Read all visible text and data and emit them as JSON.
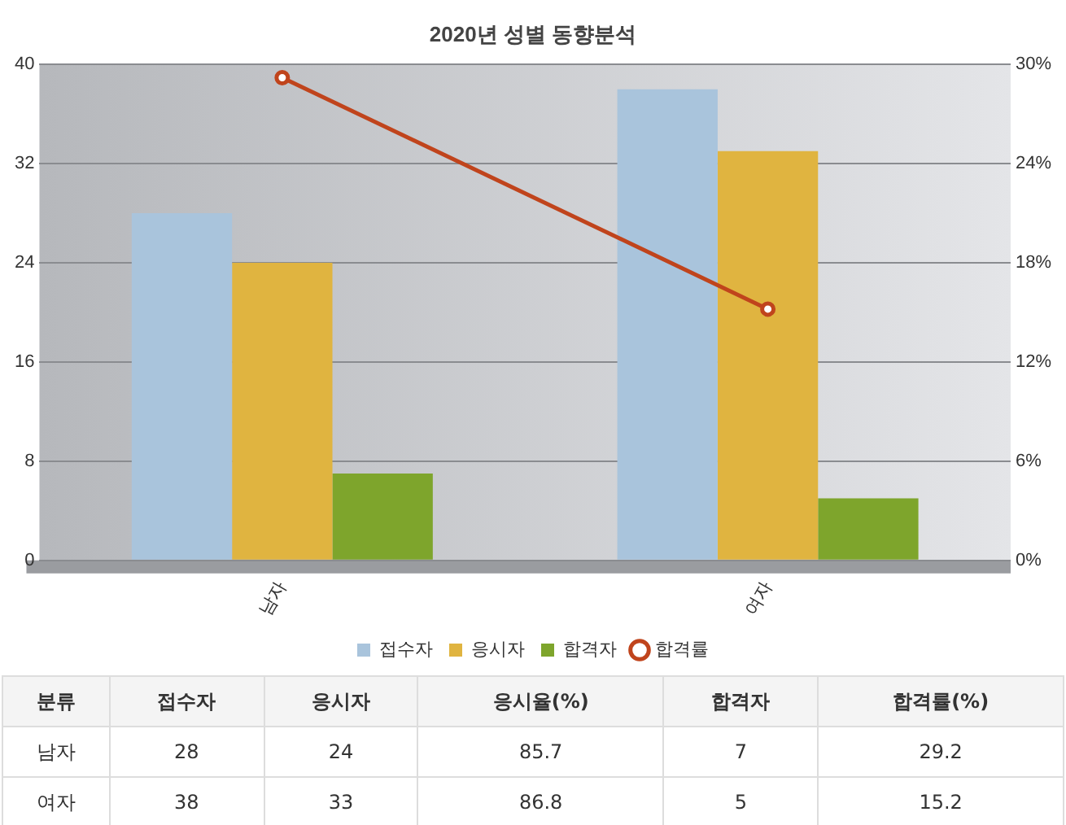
{
  "chart_data": [
    {
      "type": "bar",
      "title": "2020년 성별 동향분석",
      "categories": [
        "남자",
        "여자"
      ],
      "series": [
        {
          "name": "접수자",
          "color": "#a9c4dc",
          "values": [
            28,
            38
          ]
        },
        {
          "name": "응시자",
          "color": "#e0b440",
          "values": [
            24,
            33
          ]
        },
        {
          "name": "합격자",
          "color": "#7ea52c",
          "values": [
            7,
            5
          ]
        },
        {
          "name": "합격률",
          "type": "line",
          "axis": "y2",
          "color": "#c0441c",
          "values": [
            29.2,
            15.2
          ]
        }
      ],
      "ylim": [
        0,
        40
      ],
      "yticks": [
        0,
        8,
        16,
        24,
        32,
        40
      ],
      "y2lim": [
        0,
        30
      ],
      "y2ticks": [
        {
          "value": 0,
          "label": "0%"
        },
        {
          "value": 6,
          "label": "6%"
        },
        {
          "value": 12,
          "label": "12%"
        },
        {
          "value": 18,
          "label": "18%"
        },
        {
          "value": 24,
          "label": "24%"
        },
        {
          "value": 30,
          "label": "30%"
        }
      ],
      "grid": "y",
      "legend": "bottom",
      "marker": "circle"
    },
    {
      "type": "other",
      "annotations": [
        "분류",
        "접수자",
        "응시자",
        "응시율(%)",
        "합격자",
        "합격률(%)",
        "남자",
        "28",
        "24",
        "85.7",
        "7",
        "29.2",
        "여자",
        "38",
        "33",
        "86.8",
        "5",
        "15.2"
      ]
    }
  ]
}
